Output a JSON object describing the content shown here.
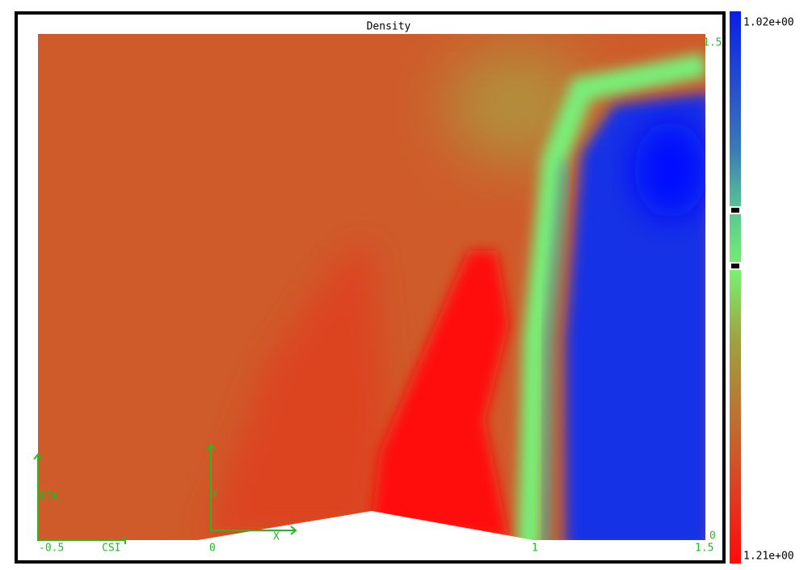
{
  "title": "Density",
  "colorbar": {
    "max_label": "1.02e+00",
    "min_label": "1.21e+00"
  },
  "axes": {
    "x_labels": [
      "-0.5",
      "0",
      "1",
      "1.5"
    ],
    "right_labels": [
      "1.5",
      "0"
    ],
    "csi": "CSI",
    "eta": "ETA",
    "x": "X",
    "y": "Y"
  }
}
